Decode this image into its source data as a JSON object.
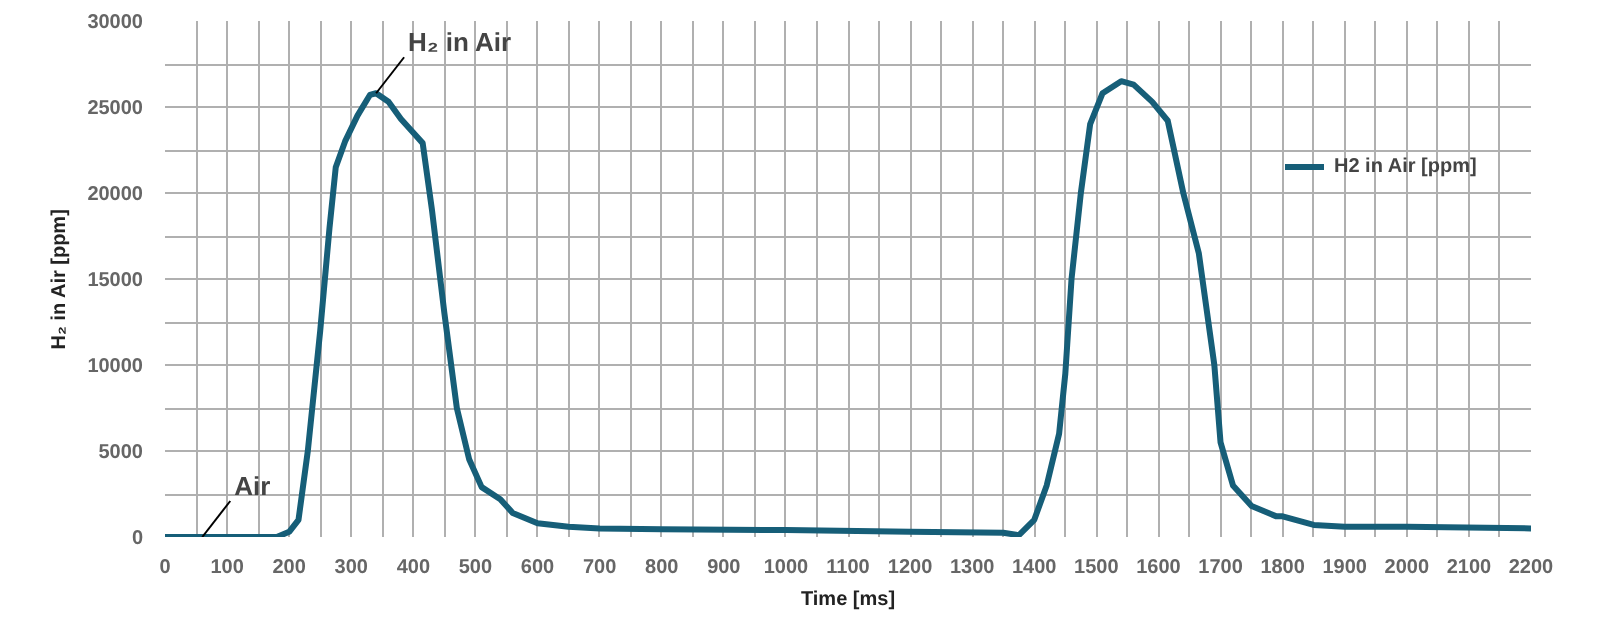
{
  "chart_data": {
    "type": "line",
    "xlabel": "Time [ms]",
    "ylabel": "H₂ in Air [ppm]",
    "x": [
      0,
      100,
      180,
      200,
      215,
      230,
      250,
      265,
      275,
      290,
      310,
      330,
      340,
      360,
      380,
      400,
      415,
      430,
      450,
      470,
      490,
      510,
      540,
      560,
      600,
      650,
      700,
      800,
      1000,
      1200,
      1350,
      1375,
      1400,
      1420,
      1440,
      1450,
      1460,
      1475,
      1490,
      1510,
      1540,
      1560,
      1590,
      1615,
      1640,
      1665,
      1690,
      1700,
      1720,
      1750,
      1790,
      1800,
      1850,
      1900,
      2000,
      2200
    ],
    "series": [
      {
        "name": "H2 in Air [ppm]",
        "color": "#165e78",
        "values": [
          0,
          0,
          0,
          300,
          1000,
          5000,
          12000,
          18000,
          21500,
          23000,
          24500,
          25700,
          25800,
          25300,
          24300,
          23500,
          22900,
          19000,
          13000,
          7500,
          4500,
          2900,
          2200,
          1400,
          800,
          600,
          500,
          450,
          400,
          300,
          250,
          100,
          1000,
          3000,
          6000,
          9500,
          15000,
          20000,
          24000,
          25800,
          26500,
          26300,
          25300,
          24200,
          20000,
          16500,
          10000,
          5500,
          3000,
          1800,
          1200,
          1200,
          700,
          600,
          600,
          500
        ]
      }
    ],
    "xlim": [
      0,
      2200
    ],
    "ylim": [
      0,
      30000
    ],
    "xticks": [
      0,
      {
        "value": 50,
        "label": null
      },
      100,
      {
        "value": 150,
        "label": null
      },
      200,
      {
        "value": 250,
        "label": null
      },
      300,
      {
        "value": 350,
        "label": null
      },
      400,
      {
        "value": 450,
        "label": null
      },
      500,
      {
        "value": 550,
        "label": null
      },
      600,
      {
        "value": 650,
        "label": null
      },
      700,
      {
        "value": 750,
        "label": null
      },
      800,
      {
        "value": 850,
        "label": null
      },
      900,
      {
        "value": 950,
        "label": null
      },
      1000,
      {
        "value": 1050,
        "label": null
      },
      1100,
      {
        "value": 1150,
        "label": null
      },
      1200,
      {
        "value": 1250,
        "label": null
      },
      1300,
      {
        "value": 1350,
        "label": null
      },
      1400,
      {
        "value": 1450,
        "label": null
      },
      1500,
      {
        "value": 1550,
        "label": null
      },
      1600,
      {
        "value": 1650,
        "label": null
      },
      1700,
      {
        "value": 1750,
        "label": null
      },
      1800,
      {
        "value": 1850,
        "label": null
      },
      1900,
      {
        "value": 1950,
        "label": null
      },
      2000,
      {
        "value": 2050,
        "label": null
      },
      2100,
      {
        "value": 2150,
        "label": null
      },
      2200
    ],
    "yticks": [
      0,
      {
        "value": 2500,
        "label": null
      },
      5000,
      {
        "value": 7500,
        "label": null
      },
      10000,
      {
        "value": 12500,
        "label": null
      },
      15000,
      {
        "value": 17500,
        "label": null
      },
      20000,
      {
        "value": 22500,
        "label": null
      },
      25000,
      {
        "value": 27500,
        "label": null
      },
      30000
    ],
    "grid": true,
    "legend": "top right",
    "marker": "none",
    "line_style": "solid",
    "annotations": [
      {
        "text": "H₂ in Air",
        "x": 340,
        "y": 25800
      },
      {
        "text": "Air",
        "x": 60,
        "y": 0
      }
    ]
  }
}
